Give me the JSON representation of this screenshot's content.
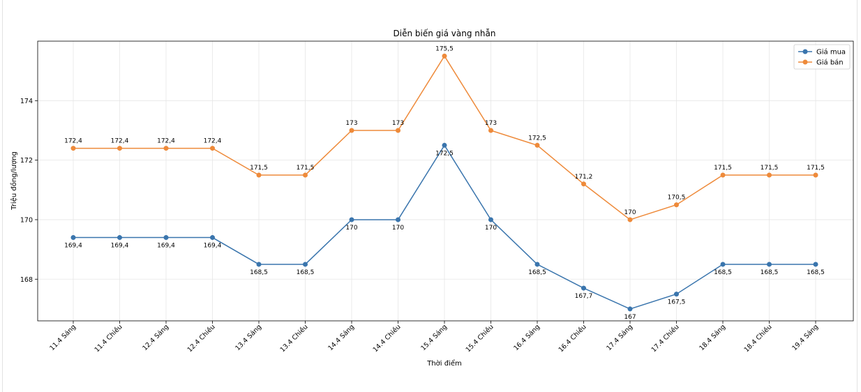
{
  "chart_data": {
    "type": "line",
    "title": "Diễn biến giá vàng nhẫn",
    "xlabel": "Thời điểm",
    "ylabel": "Triệu đồng/lượng",
    "ylim": [
      166.6,
      176.0
    ],
    "yticks": [
      168,
      170,
      172,
      174
    ],
    "grid": true,
    "legend_position": "top-right",
    "categories": [
      "11.4 Sáng",
      "11.4 Chiều",
      "12.4 Sáng",
      "12.4 Chiều",
      "13.4 Sáng",
      "13.4 Chiều",
      "14.4 Sáng",
      "14.4 Chiều",
      "15.4 Sáng",
      "15.4 Chiều",
      "16.4 Sáng",
      "16.4 Chiều",
      "17.4 Sáng",
      "17.4 Chiều",
      "18.4 Sáng",
      "18.4 Chiều",
      "19.4 Sáng"
    ],
    "series": [
      {
        "name": "Giá mua",
        "color": "#3a75ad",
        "values": [
          169.4,
          169.4,
          169.4,
          169.4,
          168.5,
          168.5,
          170,
          170,
          172.5,
          170,
          168.5,
          167.7,
          167,
          167.5,
          168.5,
          168.5,
          168.5
        ],
        "labels": [
          "169,4",
          "169,4",
          "169,4",
          "169,4",
          "168,5",
          "168,5",
          "170",
          "170",
          "172,5",
          "170",
          "168,5",
          "167,7",
          "167",
          "167,5",
          "168,5",
          "168,5",
          "168,5"
        ],
        "label_position": "below"
      },
      {
        "name": "Giá bán",
        "color": "#ee8a3a",
        "values": [
          172.4,
          172.4,
          172.4,
          172.4,
          171.5,
          171.5,
          173,
          173,
          175.5,
          173,
          172.5,
          171.2,
          170,
          170.5,
          171.5,
          171.5,
          171.5
        ],
        "labels": [
          "172,4",
          "172,4",
          "172,4",
          "172,4",
          "171,5",
          "171,5",
          "173",
          "173",
          "175,5",
          "173",
          "172,5",
          "171,2",
          "170",
          "170,5",
          "171,5",
          "171,5",
          "171,5"
        ],
        "label_position": "above"
      }
    ]
  }
}
